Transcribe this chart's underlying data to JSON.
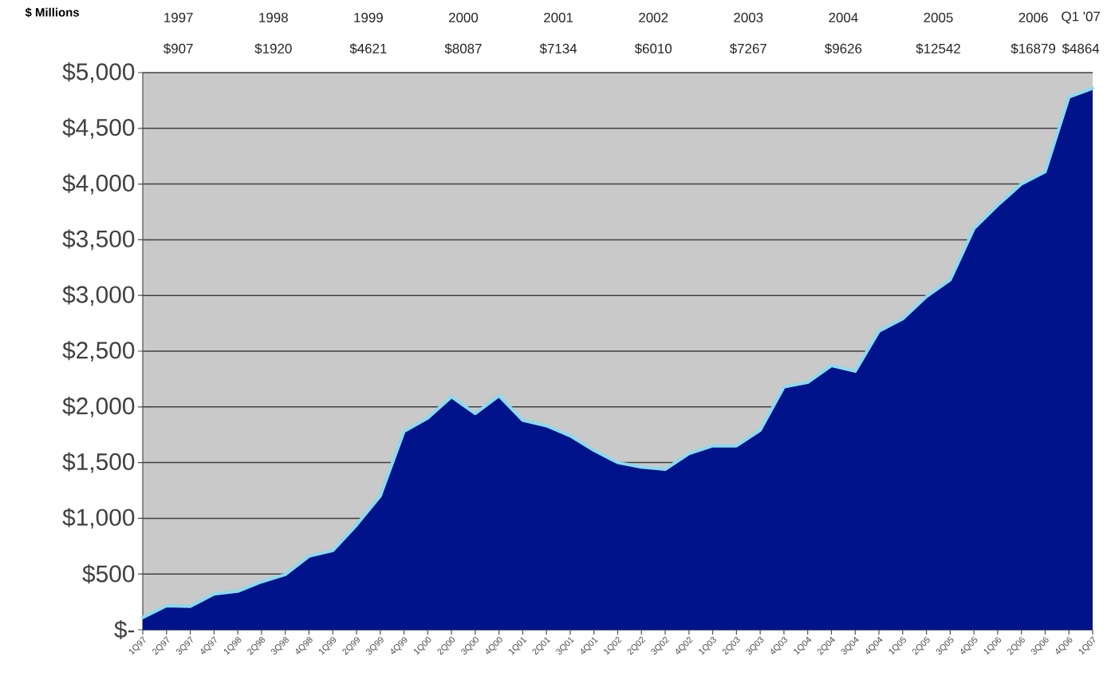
{
  "chart_data": {
    "type": "area",
    "ylabel": "$ Millions",
    "categories": [
      "1Q97",
      "2Q97",
      "3Q97",
      "4Q97",
      "1Q98",
      "2Q98",
      "3Q98",
      "4Q98",
      "1Q99",
      "2Q99",
      "3Q99",
      "4Q99",
      "1Q00",
      "2Q00",
      "3Q00",
      "4Q00",
      "1Q01",
      "2Q01",
      "3Q01",
      "4Q01",
      "1Q02",
      "2Q02",
      "3Q02",
      "4Q02",
      "1Q03",
      "2Q03",
      "3Q03",
      "4Q03",
      "1Q04",
      "2Q04",
      "3Q04",
      "4Q04",
      "1Q05",
      "2Q05",
      "3Q05",
      "4Q05",
      "1Q06",
      "2Q06",
      "3Q06",
      "4Q06",
      "1Q07"
    ],
    "series": [
      {
        "color": "#00138a",
        "values": [
          110,
          215,
          210,
          320,
          345,
          430,
          495,
          660,
          710,
          940,
          1200,
          1780,
          1900,
          2090,
          1940,
          2100,
          1880,
          1830,
          1740,
          1610,
          1500,
          1460,
          1440,
          1580,
          1650,
          1650,
          1790,
          2180,
          2220,
          2370,
          2320,
          2680,
          2790,
          2990,
          3140,
          3600,
          3810,
          4000,
          4110,
          4780,
          4860
        ]
      }
    ],
    "ylim": [
      0,
      5000
    ],
    "yticks": [
      {
        "value": 0,
        "label": "$-"
      },
      {
        "value": 500,
        "label": "$500"
      },
      {
        "value": 1000,
        "label": "$1,000"
      },
      {
        "value": 1500,
        "label": "$1,500"
      },
      {
        "value": 2000,
        "label": "$2,000"
      },
      {
        "value": 2500,
        "label": "$2,500"
      },
      {
        "value": 3000,
        "label": "$3,000"
      },
      {
        "value": 3500,
        "label": "$3,500"
      },
      {
        "value": 4000,
        "label": "$4,000"
      },
      {
        "value": 4500,
        "label": "$4,500"
      },
      {
        "value": 5000,
        "label": "$5,000"
      }
    ],
    "grid": "y",
    "annotations": [
      "1997",
      "$907",
      "1998",
      "$1920",
      "1999",
      "$4621",
      "2000",
      "$8087",
      "2001",
      "$7134",
      "2002",
      "$6010",
      "2003",
      "$7267",
      "2004",
      "$9626",
      "2005",
      "$12542",
      "2006",
      "$16879",
      "Q1 '07",
      "$4864"
    ]
  }
}
